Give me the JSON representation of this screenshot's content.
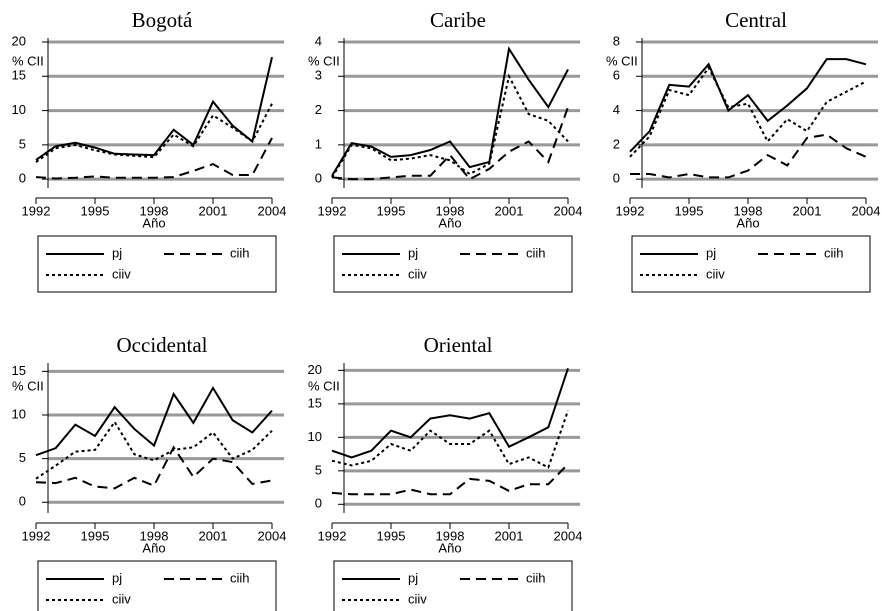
{
  "chart_data": [
    {
      "type": "line",
      "title": "Bogotá",
      "xlabel": "Año",
      "ylabel": "% CII",
      "x": [
        1992,
        1993,
        1994,
        1995,
        1996,
        1997,
        1998,
        1999,
        2000,
        2001,
        2002,
        2003,
        2004
      ],
      "xlim": [
        1992,
        2004
      ],
      "xticks": [
        1992,
        1995,
        1998,
        2001,
        2004
      ],
      "ylim": [
        -1,
        20
      ],
      "yticks": [
        0,
        5,
        10,
        15,
        20
      ],
      "grid": true,
      "series": [
        {
          "name": "pj",
          "color": "#000000",
          "linestyle": "solid",
          "values": [
            2.8,
            4.8,
            5.3,
            4.6,
            3.7,
            3.6,
            3.5,
            7.2,
            5.0,
            11.3,
            7.8,
            5.5,
            17.8
          ]
        },
        {
          "name": "ciih",
          "color": "#000000",
          "linestyle": "dashed",
          "values": [
            0.3,
            0.1,
            0.2,
            0.4,
            0.2,
            0.2,
            0.2,
            0.3,
            1.2,
            2.2,
            0.6,
            0.6,
            6.0
          ]
        },
        {
          "name": "ciiv",
          "color": "#000000",
          "linestyle": "dotted",
          "values": [
            2.5,
            4.5,
            5.0,
            4.2,
            3.6,
            3.4,
            3.2,
            6.5,
            4.8,
            9.3,
            7.5,
            5.5,
            11.0
          ]
        }
      ]
    },
    {
      "type": "line",
      "title": "Caribe",
      "xlabel": "Año",
      "ylabel": "% CII",
      "x": [
        1992,
        1993,
        1994,
        1995,
        1996,
        1997,
        1998,
        1999,
        2000,
        2001,
        2002,
        2003,
        2004
      ],
      "xlim": [
        1992,
        2004
      ],
      "xticks": [
        1992,
        1995,
        1998,
        2001,
        2004
      ],
      "ylim": [
        -0.2,
        4
      ],
      "yticks": [
        0,
        1,
        2,
        3,
        4
      ],
      "grid": true,
      "series": [
        {
          "name": "pj",
          "color": "#000000",
          "linestyle": "solid",
          "values": [
            0.1,
            1.05,
            0.95,
            0.65,
            0.7,
            0.85,
            1.1,
            0.35,
            0.5,
            3.8,
            2.9,
            2.1,
            3.2
          ]
        },
        {
          "name": "ciih",
          "color": "#000000",
          "linestyle": "dashed",
          "values": [
            0.05,
            0,
            0,
            0.05,
            0.1,
            0.1,
            0.7,
            0,
            0.3,
            0.8,
            1.1,
            0.5,
            2.1
          ]
        },
        {
          "name": "ciiv",
          "color": "#000000",
          "linestyle": "dotted",
          "values": [
            0.05,
            1.0,
            0.9,
            0.55,
            0.6,
            0.7,
            0.55,
            0.15,
            0.45,
            3.0,
            1.9,
            1.7,
            1.1
          ]
        }
      ]
    },
    {
      "type": "line",
      "title": "Central",
      "xlabel": "Año",
      "ylabel": "% CII",
      "x": [
        1992,
        1993,
        1994,
        1995,
        1996,
        1997,
        1998,
        1999,
        2000,
        2001,
        2002,
        2003,
        2004
      ],
      "xlim": [
        1992,
        2004
      ],
      "xticks": [
        1992,
        1995,
        1998,
        2001,
        2004
      ],
      "ylim": [
        -0.4,
        8
      ],
      "yticks": [
        0,
        2,
        4,
        6,
        8
      ],
      "grid": true,
      "series": [
        {
          "name": "pj",
          "color": "#000000",
          "linestyle": "solid",
          "values": [
            1.6,
            2.8,
            5.5,
            5.4,
            6.7,
            4.0,
            4.9,
            3.4,
            4.3,
            5.3,
            7.0,
            7.0,
            6.7
          ]
        },
        {
          "name": "ciih",
          "color": "#000000",
          "linestyle": "dashed",
          "values": [
            0.3,
            0.3,
            0.1,
            0.3,
            0.1,
            0.1,
            0.5,
            1.4,
            0.8,
            2.4,
            2.6,
            1.8,
            1.3
          ]
        },
        {
          "name": "ciiv",
          "color": "#000000",
          "linestyle": "dotted",
          "values": [
            1.3,
            2.5,
            5.2,
            4.9,
            6.5,
            4.2,
            4.4,
            2.2,
            3.5,
            2.8,
            4.5,
            5.1,
            5.7
          ]
        }
      ]
    },
    {
      "type": "line",
      "title": "Occidental",
      "xlabel": "Año",
      "ylabel": "% CII",
      "x": [
        1992,
        1993,
        1994,
        1995,
        1996,
        1997,
        1998,
        1999,
        2000,
        2001,
        2002,
        2003,
        2004
      ],
      "xlim": [
        1992,
        2004
      ],
      "xticks": [
        1992,
        1995,
        1998,
        2001,
        2004
      ],
      "ylim": [
        -1,
        15.5
      ],
      "yticks": [
        0,
        5,
        10,
        15
      ],
      "grid": true,
      "series": [
        {
          "name": "pj",
          "color": "#000000",
          "linestyle": "solid",
          "values": [
            5.4,
            6.2,
            8.9,
            7.6,
            10.9,
            8.4,
            6.5,
            12.4,
            9.1,
            13.1,
            9.4,
            8.0,
            10.5
          ]
        },
        {
          "name": "ciih",
          "color": "#000000",
          "linestyle": "dashed",
          "values": [
            2.3,
            2.2,
            2.8,
            1.8,
            1.6,
            2.8,
            1.9,
            6.3,
            2.9,
            5.0,
            4.6,
            2.1,
            2.5
          ]
        },
        {
          "name": "ciiv",
          "color": "#000000",
          "linestyle": "dotted",
          "values": [
            2.7,
            4.2,
            5.8,
            6.0,
            9.2,
            5.5,
            4.8,
            6.0,
            6.3,
            8.0,
            5.0,
            6.0,
            8.2
          ]
        }
      ]
    },
    {
      "type": "line",
      "title": "Oriental",
      "xlabel": "Año",
      "ylabel": "% CII",
      "x": [
        1992,
        1993,
        1994,
        1995,
        1996,
        1997,
        1998,
        1999,
        2000,
        2001,
        2002,
        2003,
        2004
      ],
      "xlim": [
        1992,
        2004
      ],
      "xticks": [
        1992,
        1995,
        1998,
        2001,
        2004
      ],
      "ylim": [
        -1,
        20.5
      ],
      "yticks": [
        0,
        5,
        10,
        15,
        20
      ],
      "grid": true,
      "series": [
        {
          "name": "pj",
          "color": "#000000",
          "linestyle": "solid",
          "values": [
            8.0,
            7.0,
            8.0,
            11.0,
            10.0,
            12.8,
            13.3,
            12.8,
            13.6,
            8.6,
            10.0,
            11.5,
            20.3
          ]
        },
        {
          "name": "ciih",
          "color": "#000000",
          "linestyle": "dashed",
          "values": [
            1.7,
            1.5,
            1.5,
            1.5,
            2.2,
            1.5,
            1.5,
            3.8,
            3.5,
            2.0,
            3.0,
            3.0,
            6.0
          ]
        },
        {
          "name": "ciiv",
          "color": "#000000",
          "linestyle": "dotted",
          "values": [
            6.5,
            5.8,
            6.5,
            9.0,
            8.0,
            11.0,
            9.0,
            9.0,
            11.0,
            6.0,
            7.0,
            5.5,
            14.0
          ]
        }
      ]
    }
  ]
}
